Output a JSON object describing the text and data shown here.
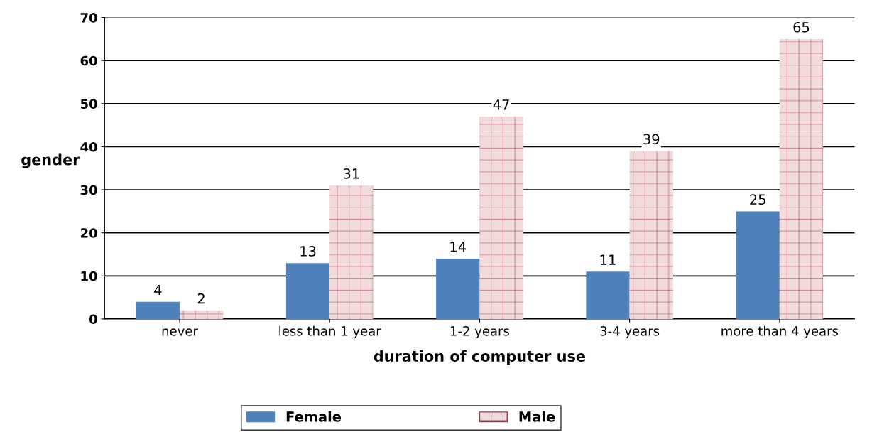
{
  "chart_data": {
    "type": "bar",
    "xlabel": "duration of computer use",
    "ylabel": "gender",
    "categories": [
      "never",
      "less than 1 year",
      "1-2 years",
      "3-4 years",
      "more than 4 years"
    ],
    "series": [
      {
        "name": "Female",
        "color": "#4f81bd",
        "values": [
          4,
          13,
          14,
          11,
          25
        ]
      },
      {
        "name": "Male",
        "color": "#f2dcdb",
        "values": [
          2,
          31,
          47,
          39,
          65
        ]
      }
    ],
    "ylim": [
      0,
      70
    ],
    "yticks": [
      0,
      10,
      20,
      30,
      40,
      50,
      60,
      70
    ],
    "grid": "y",
    "legend": "bottom",
    "data_labels": true
  }
}
